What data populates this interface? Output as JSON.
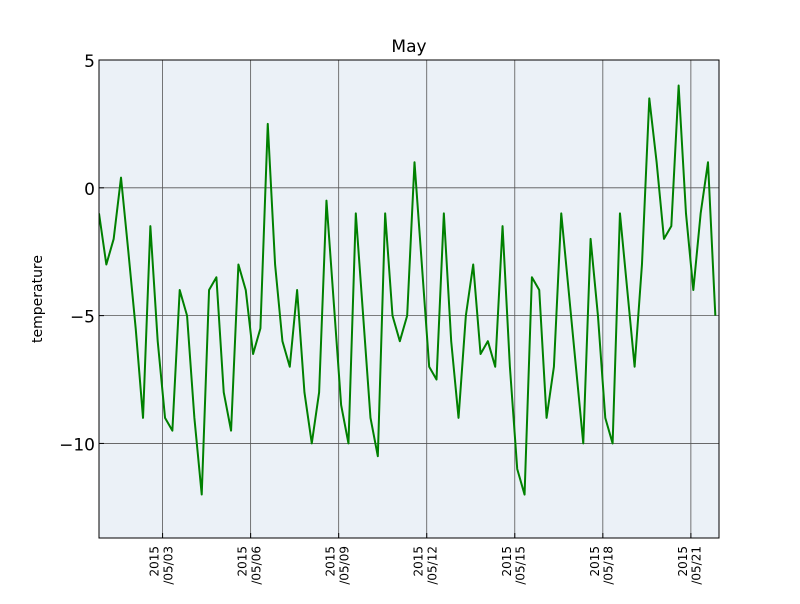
{
  "chart_data": {
    "type": "line",
    "title": "May",
    "y_label": "temperature",
    "color": "#008000",
    "background": "#ebf1f7",
    "grid": true,
    "x": [
      "2015-04-30T20:00",
      "2015-05-01T02:00",
      "2015-05-01T08:00",
      "2015-05-01T14:00",
      "2015-05-01T20:00",
      "2015-05-02T02:00",
      "2015-05-02T08:00",
      "2015-05-02T14:00",
      "2015-05-02T20:00",
      "2015-05-03T02:00",
      "2015-05-03T08:00",
      "2015-05-03T14:00",
      "2015-05-03T20:00",
      "2015-05-04T02:00",
      "2015-05-04T08:00",
      "2015-05-04T14:00",
      "2015-05-04T20:00",
      "2015-05-05T02:00",
      "2015-05-05T08:00",
      "2015-05-05T14:00",
      "2015-05-05T20:00",
      "2015-05-06T02:00",
      "2015-05-06T08:00",
      "2015-05-06T14:00",
      "2015-05-06T20:00",
      "2015-05-07T02:00",
      "2015-05-07T08:00",
      "2015-05-07T14:00",
      "2015-05-07T20:00",
      "2015-05-08T02:00",
      "2015-05-08T08:00",
      "2015-05-08T14:00",
      "2015-05-08T20:00",
      "2015-05-09T02:00",
      "2015-05-09T08:00",
      "2015-05-09T14:00",
      "2015-05-09T20:00",
      "2015-05-10T02:00",
      "2015-05-10T08:00",
      "2015-05-10T14:00",
      "2015-05-10T20:00",
      "2015-05-11T02:00",
      "2015-05-11T08:00",
      "2015-05-11T14:00",
      "2015-05-11T20:00",
      "2015-05-12T02:00",
      "2015-05-12T08:00",
      "2015-05-12T14:00",
      "2015-05-12T20:00",
      "2015-05-13T02:00",
      "2015-05-13T08:00",
      "2015-05-13T14:00",
      "2015-05-13T20:00",
      "2015-05-14T02:00",
      "2015-05-14T08:00",
      "2015-05-14T14:00",
      "2015-05-14T20:00",
      "2015-05-15T02:00",
      "2015-05-15T08:00",
      "2015-05-15T14:00",
      "2015-05-15T20:00",
      "2015-05-16T02:00",
      "2015-05-16T08:00",
      "2015-05-16T14:00",
      "2015-05-16T20:00",
      "2015-05-17T02:00",
      "2015-05-17T08:00",
      "2015-05-17T14:00",
      "2015-05-17T20:00",
      "2015-05-18T02:00",
      "2015-05-18T08:00",
      "2015-05-18T14:00",
      "2015-05-18T20:00",
      "2015-05-19T02:00",
      "2015-05-19T08:00",
      "2015-05-19T14:00",
      "2015-05-19T20:00",
      "2015-05-20T02:00",
      "2015-05-20T08:00",
      "2015-05-20T14:00",
      "2015-05-20T20:00",
      "2015-05-21T02:00",
      "2015-05-21T08:00",
      "2015-05-21T14:00",
      "2015-05-21T20:00"
    ],
    "values": [
      -1,
      -3,
      -2,
      0.4,
      -2.5,
      -5.5,
      -9,
      -1.5,
      -6,
      -9,
      -9.5,
      -4,
      -5,
      -9,
      -12,
      -4,
      -3.5,
      -8,
      -9.5,
      -3,
      -4,
      -6.5,
      -5.5,
      2.5,
      -3,
      -6,
      -7,
      -4,
      -8,
      -10,
      -8,
      -0.5,
      -4.5,
      -8.5,
      -10,
      -1,
      -5,
      -9,
      -10.5,
      -1,
      -5,
      -6,
      -5,
      1,
      -3,
      -7,
      -7.5,
      -1,
      -6,
      -9,
      -5,
      -3,
      -6.5,
      -6,
      -7,
      -1.5,
      -7,
      -11,
      -12,
      -3.5,
      -4,
      -9,
      -7,
      -1,
      -4,
      -7,
      -10,
      -2,
      -5,
      -9,
      -10,
      -1,
      -4,
      -7,
      -3,
      3.5,
      1,
      -2,
      -1.5,
      4,
      -1,
      -4,
      -1,
      1,
      -5
    ],
    "xlim": [
      "2015-04-30T20:00",
      "2015-05-21T23:00"
    ],
    "xticks": [
      {
        "value": "2015-05-03T00:00",
        "label": "2015\n/05/03"
      },
      {
        "value": "2015-05-06T00:00",
        "label": "2015\n/05/06"
      },
      {
        "value": "2015-05-09T00:00",
        "label": "2015\n/05/09"
      },
      {
        "value": "2015-05-12T00:00",
        "label": "2015\n/05/12"
      },
      {
        "value": "2015-05-15T00:00",
        "label": "2015\n/05/15"
      },
      {
        "value": "2015-05-18T00:00",
        "label": "2015\n/05/18"
      },
      {
        "value": "2015-05-21T00:00",
        "label": "2015\n/05/21"
      }
    ],
    "ylim": [
      -13.7,
      5
    ],
    "yticks": [
      5,
      {
        "value": 0,
        "label": "0"
      },
      {
        "value": -5,
        "label": "−5"
      },
      {
        "value": -10,
        "label": "−10"
      }
    ]
  }
}
